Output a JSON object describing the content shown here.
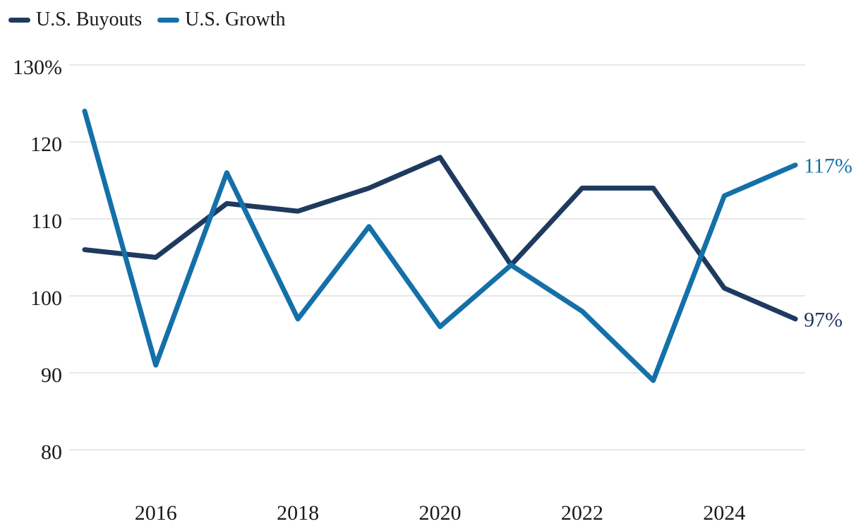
{
  "legend": {
    "items": [
      {
        "label": "U.S. Buyouts",
        "color": "#1f3a5f"
      },
      {
        "label": "U.S. Growth",
        "color": "#1470a8"
      }
    ]
  },
  "chart_data": {
    "type": "line",
    "x": [
      2015,
      2016,
      2017,
      2018,
      2019,
      2020,
      2021,
      2022,
      2023,
      2024,
      2025
    ],
    "series": [
      {
        "name": "U.S. Buyouts",
        "color": "#1f3a5f",
        "values": [
          106,
          105,
          112,
          111,
          114,
          118,
          104,
          114,
          114,
          101,
          97
        ],
        "end_label": "97%"
      },
      {
        "name": "U.S. Growth",
        "color": "#1470a8",
        "values": [
          124,
          91,
          116,
          97,
          109,
          96,
          104,
          98,
          89,
          113,
          117
        ],
        "end_label": "117%"
      }
    ],
    "ylim": [
      80,
      130
    ],
    "yticks": [
      130,
      120,
      110,
      100,
      90,
      80
    ],
    "ytick_labels": [
      "130%",
      "120",
      "110",
      "100",
      "90",
      "80"
    ],
    "xticks": [
      2016,
      2018,
      2020,
      2022,
      2024
    ],
    "xtick_labels": [
      "2016",
      "2018",
      "2020",
      "2022",
      "2024"
    ],
    "grid": true,
    "gridline_color": "#e8e8e8",
    "axis_text_color": "#1a1a1a",
    "legend_position": "top-left",
    "background_color": "#ffffff"
  }
}
